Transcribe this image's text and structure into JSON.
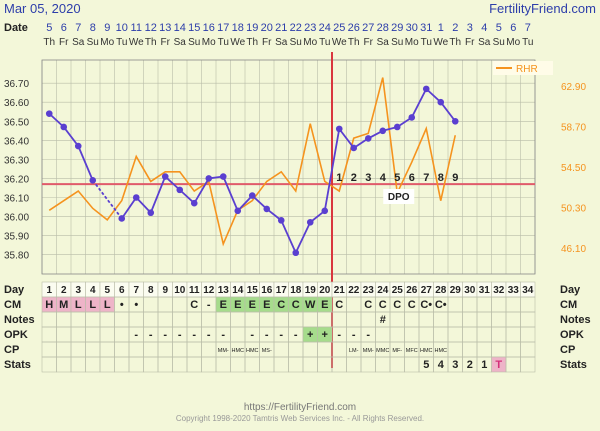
{
  "header": {
    "date": "Mar 05, 2020",
    "site": "FertilityFriend.com"
  },
  "footer": {
    "url": "https://FertilityFriend.com",
    "copyright": "Copyright 1998-2020 Tamtris Web Services Inc. - All Rights Reserved."
  },
  "row_labels": {
    "date": "Date",
    "day": "Day",
    "cm": "CM",
    "notes": "Notes",
    "opk": "OPK",
    "cp": "CP",
    "stats": "Stats"
  },
  "colors": {
    "bbt": "#5a3fd0",
    "rhr": "#f5931e",
    "coverline": "#e05a6a",
    "ovulation": "#d9363e",
    "bg": "#f3f7d9",
    "grid": "#b9bda8",
    "green": "#a6dc8c",
    "pink": "#eeb4c8"
  },
  "chart_data": {
    "type": "line",
    "x": [
      1,
      2,
      3,
      4,
      5,
      6,
      7,
      8,
      9,
      10,
      11,
      12,
      13,
      14,
      15,
      16,
      17,
      18,
      19,
      20,
      21,
      22,
      23,
      24,
      25,
      26,
      27,
      28,
      29,
      30,
      31,
      32,
      33,
      34
    ],
    "dates": [
      "5",
      "6",
      "7",
      "8",
      "9",
      "10",
      "11",
      "12",
      "13",
      "14",
      "15",
      "16",
      "17",
      "18",
      "19",
      "20",
      "21",
      "22",
      "23",
      "24",
      "25",
      "26",
      "27",
      "28",
      "29",
      "30",
      "31",
      "1",
      "2",
      "3",
      "4",
      "5",
      "6",
      "7"
    ],
    "weekdays": [
      "Th",
      "Fr",
      "Sa",
      "Su",
      "Mo",
      "Tu",
      "We",
      "Th",
      "Fr",
      "Sa",
      "Su",
      "Mo",
      "Tu",
      "We",
      "Th",
      "Fr",
      "Sa",
      "Su",
      "Mo",
      "Tu",
      "We",
      "Th",
      "Fr",
      "Sa",
      "Su",
      "Mo",
      "Tu",
      "We",
      "Th",
      "Fr",
      "Sa",
      "Su",
      "Mo",
      "Tu"
    ],
    "y_left_ticks": [
      "36.70",
      "36.60",
      "36.50",
      "36.40",
      "36.30",
      "36.20",
      "36.10",
      "36.00",
      "35.90",
      "35.80"
    ],
    "y_right_ticks": [
      "62.90",
      "58.70",
      "54.50",
      "50.30",
      "46.10"
    ],
    "ylim_left": [
      35.73,
      36.79
    ],
    "ylim_right": [
      44.0,
      65.0
    ],
    "coverline": 36.17,
    "ovulation_day": 20,
    "series": [
      {
        "name": "BBT",
        "axis": "left",
        "values": [
          36.54,
          36.47,
          36.37,
          36.19,
          null,
          35.99,
          36.1,
          36.02,
          36.21,
          36.14,
          36.07,
          36.2,
          36.21,
          36.03,
          36.11,
          36.04,
          35.98,
          35.81,
          35.97,
          36.03,
          36.46,
          36.36,
          36.41,
          36.45,
          36.47,
          36.52,
          36.67,
          36.6,
          36.5,
          null,
          null,
          null,
          null,
          null
        ]
      },
      {
        "name": "RHR",
        "axis": "right",
        "values": [
          50.0,
          51.0,
          52.0,
          50.2,
          49.0,
          51.0,
          55.6,
          53.0,
          54.0,
          54.0,
          52.0,
          53.0,
          46.5,
          50.0,
          51.0,
          53.0,
          54.0,
          52.0,
          59.0,
          53.0,
          52.0,
          57.5,
          58.0,
          63.8,
          51.8,
          55.0,
          58.5,
          51.0,
          57.8,
          null,
          null,
          null,
          null,
          null
        ]
      }
    ],
    "dpo_numbers": [
      "1",
      "2",
      "3",
      "4",
      "5",
      "6",
      "7",
      "8",
      "9"
    ],
    "dpo_label": "DPO",
    "legend": "RHR",
    "cm": [
      "H",
      "M",
      "L",
      "L",
      "L",
      "•",
      "•",
      "",
      "",
      "",
      "C",
      "-",
      "E",
      "E",
      "E",
      "E",
      "C",
      "C",
      "W",
      "E",
      "C",
      "",
      "C",
      "C",
      "C",
      "C",
      "C•",
      "C•",
      "",
      "",
      "",
      "",
      "",
      ""
    ],
    "cm_colors": [
      "pink",
      "pink",
      "pink",
      "pink",
      "pink",
      "",
      "",
      "",
      "",
      "",
      "",
      "",
      "green",
      "green",
      "green",
      "green",
      "green",
      "green",
      "green",
      "green",
      "",
      "",
      "",
      "",
      "",
      "",
      "",
      "",
      "",
      "",
      "",
      "",
      "",
      ""
    ],
    "notes": [
      "",
      "",
      "",
      "",
      "",
      "",
      "",
      "",
      "",
      "",
      "",
      "",
      "",
      "",
      "",
      "",
      "",
      "",
      "",
      "",
      "",
      "",
      "",
      "#",
      "",
      "",
      "",
      "",
      "",
      "",
      "",
      "",
      "",
      ""
    ],
    "opk": [
      "",
      "",
      "",
      "",
      "",
      "",
      "-",
      "-",
      "-",
      "-",
      "-",
      "-",
      "-",
      "",
      "-",
      "-",
      "-",
      "-",
      "+",
      "+",
      "-",
      "-",
      "-",
      "",
      "",
      "",
      "",
      "",
      "",
      "",
      "",
      "",
      "",
      ""
    ],
    "opk_colors": [
      "",
      "",
      "",
      "",
      "",
      "",
      "",
      "",
      "",
      "",
      "",
      "",
      "",
      "",
      "",
      "",
      "",
      "",
      "green",
      "green",
      "",
      "",
      "",
      "",
      "",
      "",
      "",
      "",
      "",
      "",
      "",
      "",
      "",
      ""
    ],
    "cp": [
      "",
      "",
      "",
      "",
      "",
      "",
      "",
      "",
      "",
      "",
      "",
      "",
      "MM-",
      "HMC",
      "HMC",
      "MS-",
      "",
      "",
      "",
      "",
      "",
      "LM-",
      "MM-",
      "MMC",
      "MF-",
      "MFC",
      "HMC",
      "HMC",
      "",
      "",
      "",
      "",
      "",
      ""
    ],
    "stats": [
      "",
      "",
      "",
      "",
      "",
      "",
      "",
      "",
      "",
      "",
      "",
      "",
      "",
      "",
      "",
      "",
      "",
      "",
      "",
      "",
      "",
      "",
      "",
      "",
      "",
      "",
      "5",
      "4",
      "3",
      "2",
      "1",
      "T",
      "",
      ""
    ],
    "stats_colors": [
      "",
      "",
      "",
      "",
      "",
      "",
      "",
      "",
      "",
      "",
      "",
      "",
      "",
      "",
      "",
      "",
      "",
      "",
      "",
      "",
      "",
      "",
      "",
      "",
      "",
      "",
      "",
      "",
      "",
      "",
      "",
      "pink",
      "",
      ""
    ]
  }
}
